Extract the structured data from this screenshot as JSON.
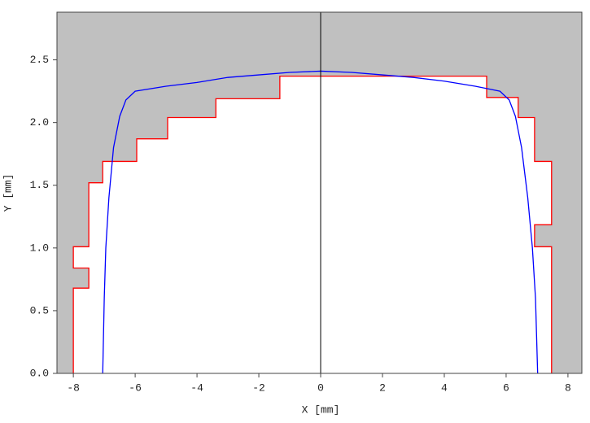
{
  "chart_data": {
    "type": "line",
    "x_label": "X [mm]",
    "y_label": "Y [mm]",
    "background": "#c0c0c0",
    "xlim": [
      -8.53,
      8.45
    ],
    "ylim": [
      0,
      2.88
    ],
    "xticks": [
      -8,
      -6,
      -4,
      -2,
      0,
      2,
      4,
      6,
      8
    ],
    "yticks": [
      {
        "value": 0,
        "label": "0.0"
      },
      0.5,
      {
        "value": 1,
        "label": "1.0"
      },
      1.5,
      {
        "value": 2,
        "label": "2.0"
      },
      2.5
    ],
    "series": [
      {
        "color": "#ff0000",
        "fill": "#ffffff",
        "x": [
          -8,
          -8,
          -7.5,
          -7.5,
          -8,
          -8,
          -7.5,
          -7.5,
          -7.05,
          -7.05,
          -5.95,
          -5.95,
          -4.95,
          -4.95,
          -3.39,
          -3.39,
          -1.32,
          -1.32,
          5.37,
          5.37,
          6.39,
          6.39,
          6.92,
          6.92,
          7.47,
          7.47,
          6.92,
          6.92,
          7.47,
          7.47
        ],
        "values": [
          0,
          0.68,
          0.68,
          0.84,
          0.84,
          1.01,
          1.01,
          1.52,
          1.52,
          1.69,
          1.69,
          1.87,
          1.87,
          2.04,
          2.04,
          2.19,
          2.19,
          2.37,
          2.37,
          2.2,
          2.2,
          2.04,
          2.04,
          1.69,
          1.69,
          1.185,
          1.185,
          1.01,
          1.01,
          0
        ]
      },
      {
        "color": "#0000ff",
        "x": [
          -7.05,
          -7.0,
          -6.95,
          -6.85,
          -6.7,
          -6.5,
          -6.3,
          -6.0,
          -5,
          -4,
          -3,
          -2,
          -1,
          0,
          1,
          2,
          3,
          4,
          5,
          5.8,
          6.1,
          6.3,
          6.5,
          6.7,
          6.85,
          6.95,
          7.02
        ],
        "values": [
          0,
          0.6,
          1.0,
          1.4,
          1.8,
          2.05,
          2.18,
          2.25,
          2.29,
          2.32,
          2.36,
          2.38,
          2.4,
          2.41,
          2.4,
          2.38,
          2.36,
          2.33,
          2.29,
          2.25,
          2.18,
          2.05,
          1.8,
          1.4,
          1.0,
          0.6,
          0
        ]
      }
    ]
  }
}
